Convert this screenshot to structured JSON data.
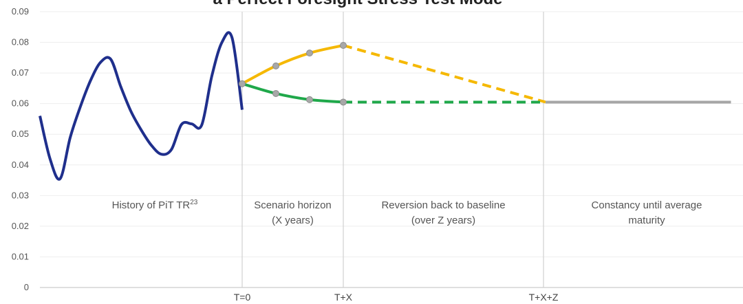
{
  "chart_data": {
    "type": "line",
    "title": "a Perfect Foresight Stress Test Mode",
    "ylim": [
      0,
      0.09
    ],
    "y_ticks": [
      "0",
      "0.01",
      "0.02",
      "0.03",
      "0.04",
      "0.05",
      "0.06",
      "0.07",
      "0.08",
      "0.09"
    ],
    "x_ticks": [
      "T=0",
      "T+X",
      "T+X+Z"
    ],
    "gridlines": true,
    "regions": [
      {
        "lines": [
          "History of PiT TR"
        ],
        "sup": "23"
      },
      {
        "lines": [
          "Scenario horizon",
          "(X years)"
        ]
      },
      {
        "lines": [
          "Reversion back to baseline",
          "(over Z years)"
        ]
      },
      {
        "lines": [
          "Constancy until average",
          "maturity"
        ]
      }
    ],
    "series": [
      {
        "key": "history",
        "color": "#1f2f8c",
        "style": "solid",
        "t": [
          -12,
          -11.4,
          -10.8,
          -10.2,
          -9.6,
          -9,
          -8.4,
          -7.8,
          -7.2,
          -6.6,
          -6,
          -5.4,
          -4.8,
          -4.2,
          -3.6,
          -3,
          -2.4,
          -1.8,
          -1.2,
          -0.6,
          0
        ],
        "values": [
          0.056,
          0.042,
          0.0355,
          0.049,
          0.059,
          0.0675,
          0.0735,
          0.0745,
          0.0655,
          0.0575,
          0.0515,
          0.0465,
          0.0435,
          0.045,
          0.0532,
          0.0534,
          0.053,
          0.069,
          0.08,
          0.0815,
          0.058
        ]
      },
      {
        "key": "adverse-scenario",
        "color": "#f5b800",
        "style": "solid",
        "t": [
          0,
          2,
          4,
          6
        ],
        "values": [
          0.0665,
          0.0723,
          0.0765,
          0.079
        ]
      },
      {
        "key": "adverse-reversion",
        "color": "#f5b800",
        "style": "dashed",
        "t": [
          6,
          18
        ],
        "values": [
          0.079,
          0.0605
        ]
      },
      {
        "key": "baseline-scenario",
        "color": "#1fa84a",
        "style": "solid",
        "t": [
          0,
          2,
          4,
          6
        ],
        "values": [
          0.0665,
          0.0633,
          0.0613,
          0.0605
        ]
      },
      {
        "key": "baseline-reversion",
        "color": "#1fa84a",
        "style": "dashed",
        "t": [
          6,
          18
        ],
        "values": [
          0.0605,
          0.0605
        ]
      },
      {
        "key": "constancy",
        "color": "#a6a6a6",
        "style": "solid",
        "t": [
          18,
          29
        ],
        "values": [
          0.0605,
          0.0605
        ]
      }
    ],
    "markers": [
      {
        "t": 0,
        "value": 0.0665
      },
      {
        "t": 2,
        "value": 0.0723
      },
      {
        "t": 4,
        "value": 0.0765
      },
      {
        "t": 6,
        "value": 0.079
      },
      {
        "t": 2,
        "value": 0.0633
      },
      {
        "t": 4,
        "value": 0.0613
      },
      {
        "t": 6,
        "value": 0.0605
      }
    ]
  }
}
